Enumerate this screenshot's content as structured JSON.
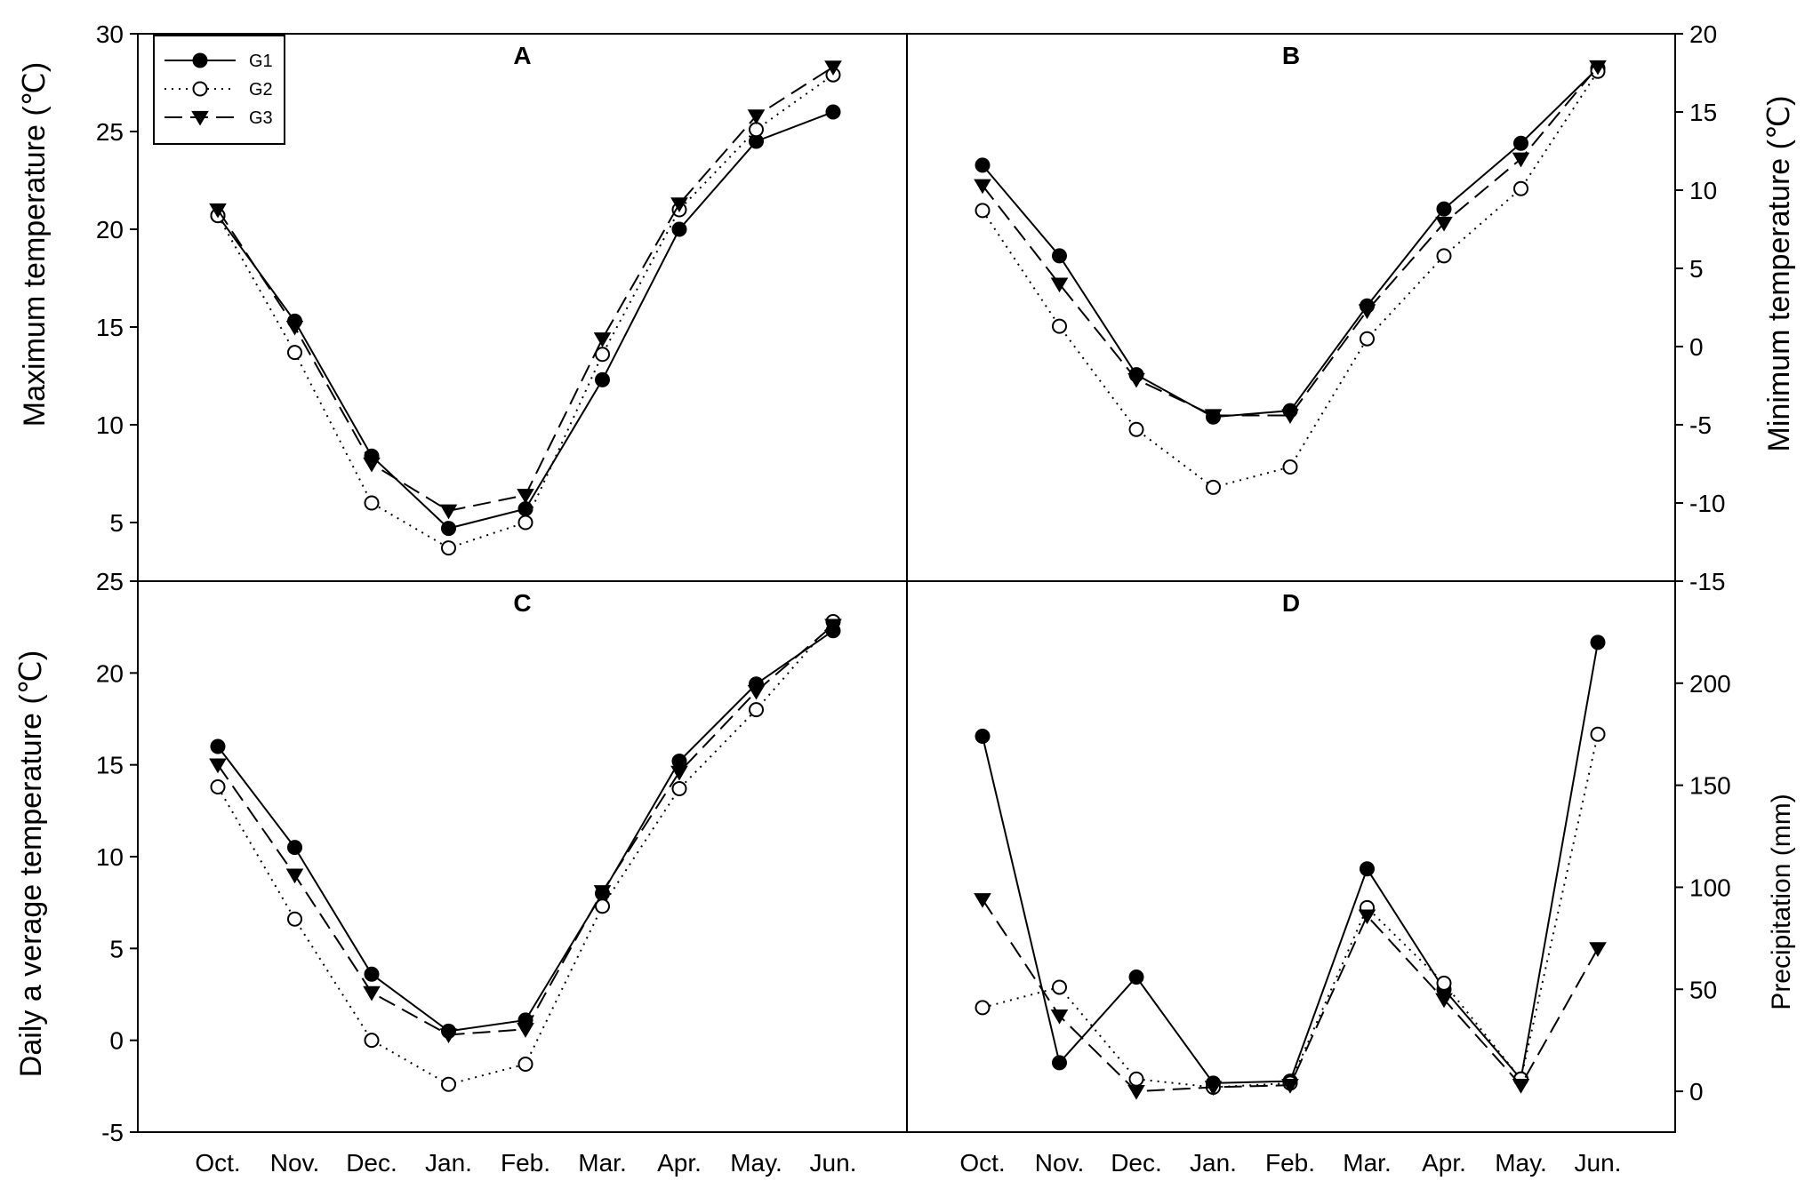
{
  "colors": {
    "axis": "#000000",
    "marker_fill_g1": "#000000",
    "marker_fill_g2": "#ffffff",
    "marker_fill_g3": "#000000"
  },
  "legend": {
    "placement": "top-left of panel A",
    "entries": [
      {
        "label": "G1",
        "line": "solid",
        "marker": "filled-circle"
      },
      {
        "label": "G2",
        "line": "dotted",
        "marker": "open-circle"
      },
      {
        "label": "G3",
        "line": "dashed",
        "marker": "filled-triangle-down"
      }
    ]
  },
  "chart_data": [
    {
      "id": "A",
      "type": "line",
      "panel_label": "A",
      "categories": [
        "Oct.",
        "Nov.",
        "Dec.",
        "Jan.",
        "Feb.",
        "Mar.",
        "Apr.",
        "May.",
        "Jun."
      ],
      "ylabel": "Maximum temperature (℃)",
      "y_axis_side": "left",
      "ylim": [
        2,
        30
      ],
      "yticks": [
        5,
        10,
        15,
        20,
        25,
        30
      ],
      "series": [
        {
          "name": "G1",
          "values": [
            20.7,
            15.3,
            8.4,
            4.7,
            5.7,
            12.3,
            20.0,
            24.5,
            26.0
          ]
        },
        {
          "name": "G2",
          "values": [
            20.7,
            13.7,
            6.0,
            3.7,
            5.0,
            13.6,
            21.0,
            25.1,
            27.9
          ]
        },
        {
          "name": "G3",
          "values": [
            21.0,
            15.0,
            8.0,
            5.6,
            6.4,
            14.4,
            21.3,
            25.8,
            28.3
          ]
        }
      ]
    },
    {
      "id": "B",
      "type": "line",
      "panel_label": "B",
      "categories": [
        "Oct.",
        "Nov.",
        "Dec.",
        "Jan.",
        "Feb.",
        "Mar.",
        "Apr.",
        "May.",
        "Jun."
      ],
      "ylabel": "Minimum temperature (℃)",
      "y_axis_side": "right",
      "ylim": [
        -15,
        20
      ],
      "yticks": [
        -15,
        -10,
        -5,
        0,
        5,
        10,
        15,
        20
      ],
      "series": [
        {
          "name": "G1",
          "values": [
            11.6,
            5.8,
            -1.8,
            -4.5,
            -4.1,
            2.6,
            8.8,
            13.0,
            17.8
          ]
        },
        {
          "name": "G2",
          "values": [
            8.7,
            1.3,
            -5.3,
            -9.0,
            -7.7,
            0.5,
            5.8,
            10.1,
            17.6
          ]
        },
        {
          "name": "G3",
          "values": [
            10.3,
            4.0,
            -2.1,
            -4.4,
            -4.4,
            2.3,
            7.9,
            12.0,
            17.9
          ]
        }
      ]
    },
    {
      "id": "C",
      "type": "line",
      "panel_label": "C",
      "categories": [
        "Oct.",
        "Nov.",
        "Dec.",
        "Jan.",
        "Feb.",
        "Mar.",
        "Apr.",
        "May.",
        "Jun."
      ],
      "ylabel": "Daily a verage temperature (℃)",
      "y_axis_side": "left",
      "ylim": [
        -5,
        25
      ],
      "yticks": [
        -5,
        0,
        5,
        10,
        15,
        20,
        25
      ],
      "series": [
        {
          "name": "G1",
          "values": [
            16.0,
            10.5,
            3.6,
            0.5,
            1.1,
            8.0,
            15.2,
            19.4,
            22.3
          ]
        },
        {
          "name": "G2",
          "values": [
            13.8,
            6.6,
            0.0,
            -2.4,
            -1.3,
            7.3,
            13.7,
            18.0,
            22.8
          ]
        },
        {
          "name": "G3",
          "values": [
            15.0,
            9.0,
            2.6,
            0.3,
            0.6,
            8.1,
            14.6,
            19.0,
            22.6
          ]
        }
      ]
    },
    {
      "id": "D",
      "type": "line",
      "panel_label": "D",
      "categories": [
        "Oct.",
        "Nov.",
        "Dec.",
        "Jan.",
        "Feb.",
        "Mar.",
        "Apr.",
        "May.",
        "Jun."
      ],
      "ylabel": "Precipitation (mm)",
      "y_axis_side": "right",
      "ylim": [
        -20,
        250
      ],
      "yticks": [
        0,
        50,
        100,
        150,
        200
      ],
      "series": [
        {
          "name": "G1",
          "values": [
            174,
            14,
            56,
            4,
            5,
            109,
            50,
            6,
            220
          ]
        },
        {
          "name": "G2",
          "values": [
            41,
            51,
            6,
            2,
            4,
            90,
            53,
            6,
            175
          ]
        },
        {
          "name": "G3",
          "values": [
            94,
            37,
            0,
            2,
            3,
            86,
            45,
            3,
            70
          ]
        }
      ]
    }
  ]
}
